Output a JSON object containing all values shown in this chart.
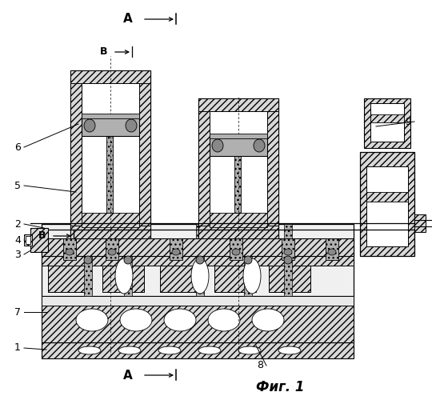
{
  "title": "Фиг. 1",
  "bg": "#ffffff",
  "lc": "#000000",
  "gray_light": "#d8d8d8",
  "gray_mid": "#b0b0b0",
  "gray_dark": "#888888",
  "hatch": "////",
  "labels": [
    "1",
    "2",
    "3",
    "4",
    "5",
    "6",
    "7",
    "8",
    "9"
  ],
  "section_A": "А",
  "section_B": "В"
}
